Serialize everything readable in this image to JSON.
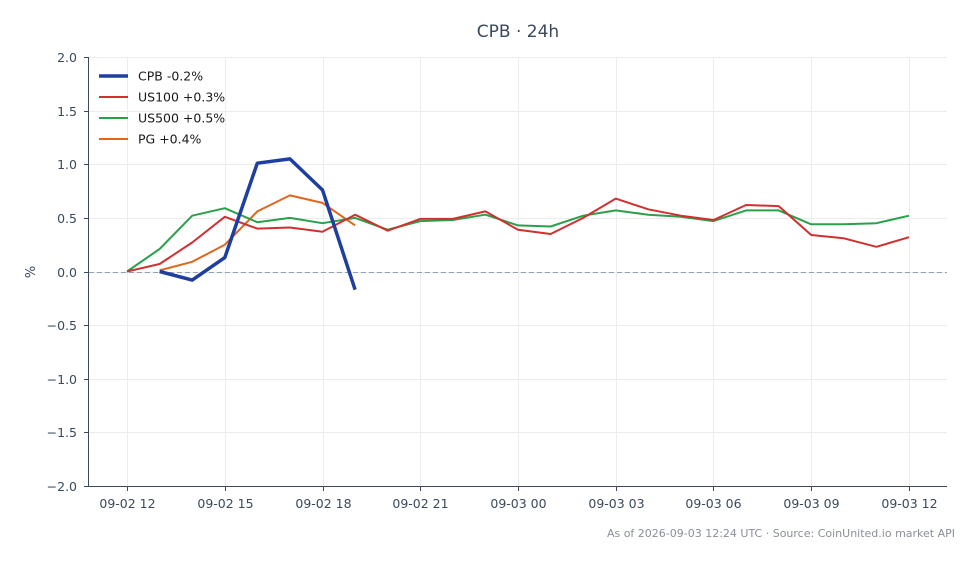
{
  "chart_data": {
    "type": "line",
    "title": "CPB · 24h",
    "ylabel": "%",
    "xlabel": "",
    "ylim": [
      -2.0,
      2.0
    ],
    "yticks": [
      2.0,
      1.5,
      1.0,
      0.5,
      0.0,
      -0.5,
      -1.0,
      -1.5,
      -2.0
    ],
    "ytick_labels": [
      "2.0",
      "1.5",
      "1.0",
      "0.5",
      "0.0",
      "−0.5",
      "−1.0",
      "−1.5",
      "−2.0"
    ],
    "xlim": [
      "2026-09-02 10:50",
      "2026-09-03 13:10"
    ],
    "xticks": [
      "2026-09-02 12:00",
      "2026-09-02 15:00",
      "2026-09-02 18:00",
      "2026-09-02 21:00",
      "2026-09-03 00:00",
      "2026-09-03 03:00",
      "2026-09-03 06:00",
      "2026-09-03 09:00",
      "2026-09-03 12:00"
    ],
    "xtick_labels": [
      "09-02 12",
      "09-02 15",
      "09-02 18",
      "09-02 21",
      "09-03 00",
      "09-03 03",
      "09-03 06",
      "09-03 09",
      "09-03 12"
    ],
    "grid": true,
    "zero_line": true,
    "legend_position": "top-left",
    "footer": "As of 2026-09-03 12:24 UTC · Source: CoinUnited.io market API",
    "series": [
      {
        "name": "CPB -0.2%",
        "color": "#1f3fa0",
        "x": [
          "2026-09-02 13:00",
          "2026-09-02 14:00",
          "2026-09-02 15:00",
          "2026-09-02 16:00",
          "2026-09-02 17:00",
          "2026-09-02 18:00",
          "2026-09-02 19:00"
        ],
        "values": [
          0.0,
          -0.08,
          0.13,
          1.01,
          1.05,
          0.76,
          -0.17
        ]
      },
      {
        "name": "US100 +0.3%",
        "color": "#d03030",
        "x": [
          "2026-09-02 12:00",
          "2026-09-02 13:00",
          "2026-09-02 14:00",
          "2026-09-02 15:00",
          "2026-09-02 16:00",
          "2026-09-02 17:00",
          "2026-09-02 18:00",
          "2026-09-02 19:00",
          "2026-09-02 20:00",
          "2026-09-02 21:00",
          "2026-09-02 22:00",
          "2026-09-02 23:00",
          "2026-09-03 00:00",
          "2026-09-03 01:00",
          "2026-09-03 02:00",
          "2026-09-03 03:00",
          "2026-09-03 04:00",
          "2026-09-03 05:00",
          "2026-09-03 06:00",
          "2026-09-03 07:00",
          "2026-09-03 08:00",
          "2026-09-03 09:00",
          "2026-09-03 10:00",
          "2026-09-03 11:00",
          "2026-09-03 12:00"
        ],
        "values": [
          0.0,
          0.07,
          0.27,
          0.51,
          0.4,
          0.41,
          0.37,
          0.53,
          0.38,
          0.49,
          0.49,
          0.56,
          0.39,
          0.35,
          0.5,
          0.68,
          0.58,
          0.52,
          0.48,
          0.62,
          0.61,
          0.34,
          0.31,
          0.23,
          0.32
        ]
      },
      {
        "name": "US500 +0.5%",
        "color": "#2aa04a",
        "x": [
          "2026-09-02 12:00",
          "2026-09-02 13:00",
          "2026-09-02 14:00",
          "2026-09-02 15:00",
          "2026-09-02 16:00",
          "2026-09-02 17:00",
          "2026-09-02 18:00",
          "2026-09-02 19:00",
          "2026-09-02 20:00",
          "2026-09-02 21:00",
          "2026-09-02 22:00",
          "2026-09-02 23:00",
          "2026-09-03 00:00",
          "2026-09-03 01:00",
          "2026-09-03 02:00",
          "2026-09-03 03:00",
          "2026-09-03 04:00",
          "2026-09-03 05:00",
          "2026-09-03 06:00",
          "2026-09-03 07:00",
          "2026-09-03 08:00",
          "2026-09-03 09:00",
          "2026-09-03 10:00",
          "2026-09-03 11:00",
          "2026-09-03 12:00"
        ],
        "values": [
          0.0,
          0.21,
          0.52,
          0.59,
          0.46,
          0.5,
          0.45,
          0.5,
          0.39,
          0.47,
          0.48,
          0.53,
          0.43,
          0.42,
          0.52,
          0.57,
          0.53,
          0.51,
          0.47,
          0.57,
          0.57,
          0.44,
          0.44,
          0.45,
          0.52
        ]
      },
      {
        "name": "PG +0.4%",
        "color": "#e0661e",
        "x": [
          "2026-09-02 13:00",
          "2026-09-02 14:00",
          "2026-09-02 15:00",
          "2026-09-02 16:00",
          "2026-09-02 17:00",
          "2026-09-02 18:00",
          "2026-09-02 19:00"
        ],
        "values": [
          0.01,
          0.09,
          0.25,
          0.56,
          0.71,
          0.64,
          0.43
        ]
      }
    ]
  }
}
